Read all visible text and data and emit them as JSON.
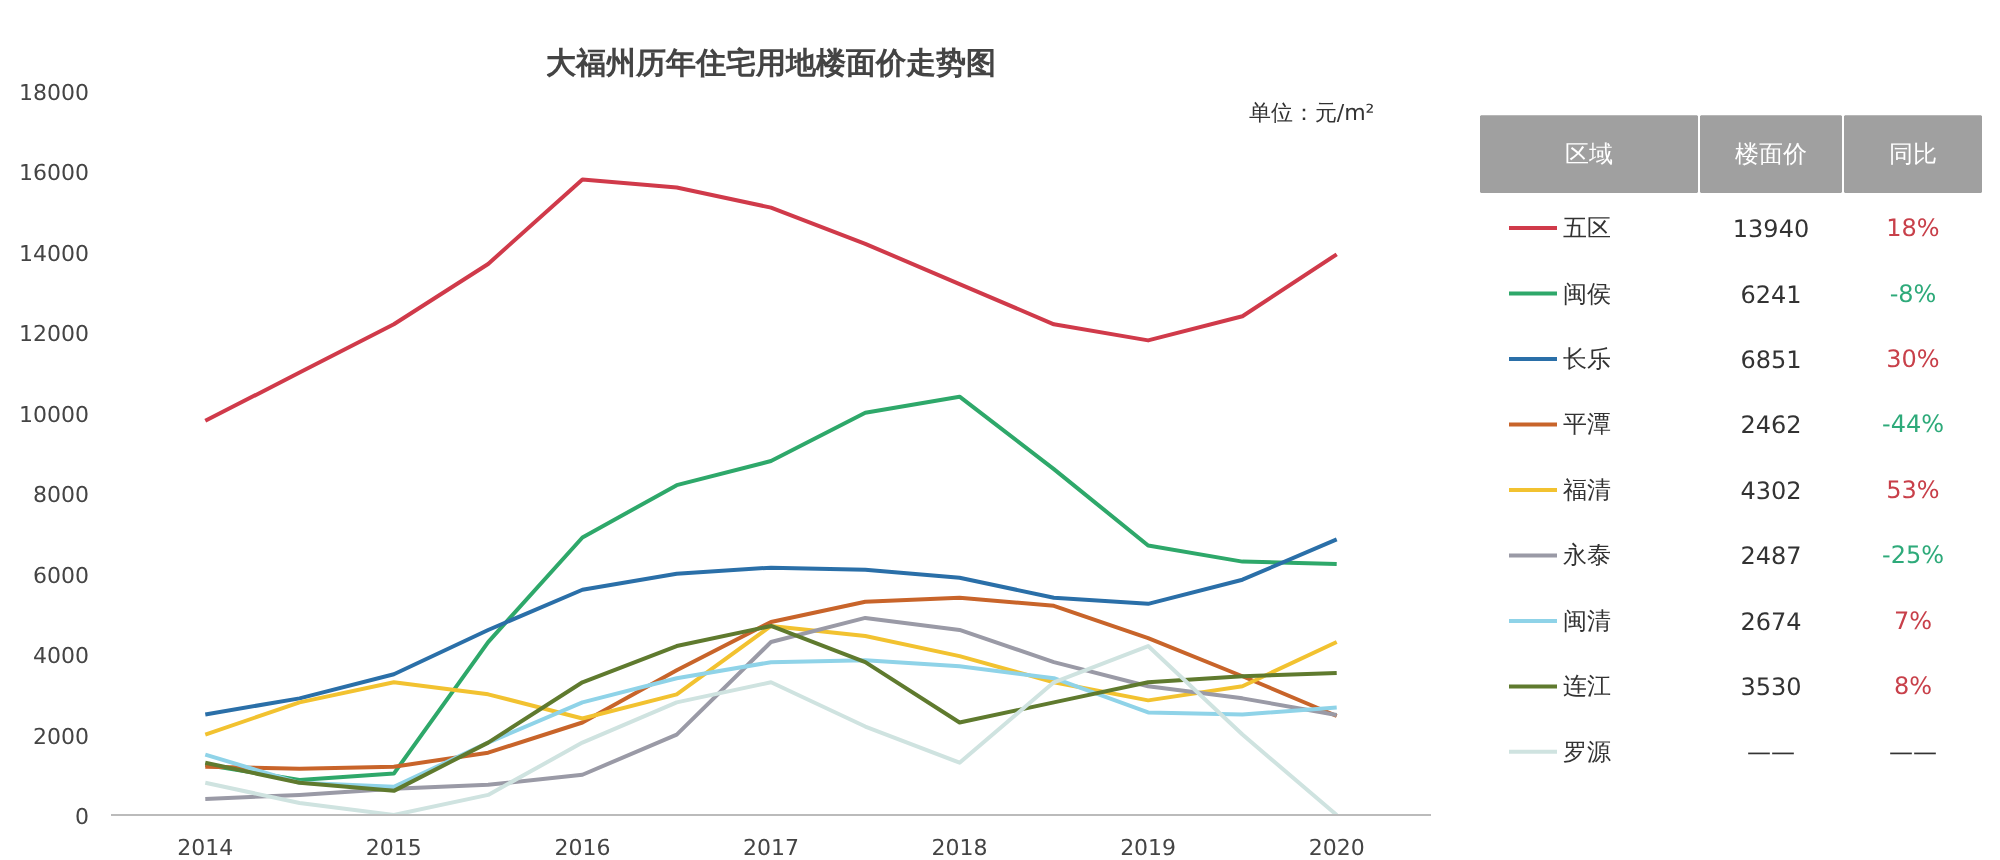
{
  "chart_data": {
    "type": "line",
    "title": "大福州历年住宅用地楼面价走势图",
    "x": [
      2014,
      2014.5,
      2015,
      2015.5,
      2016,
      2016.5,
      2017,
      2017.5,
      2018,
      2018.5,
      2019,
      2019.5,
      2020
    ],
    "xlim": [
      2013.5,
      2020.5
    ],
    "xticks": [
      2014,
      2015,
      2016,
      2017,
      2018,
      2019,
      2020
    ],
    "ylim": [
      0,
      18000
    ],
    "yticks": [
      0,
      2000,
      4000,
      6000,
      8000,
      10000,
      12000,
      14000,
      16000,
      18000
    ],
    "grid": false,
    "legend": "right",
    "marker": "none",
    "line_style": "solid",
    "series": [
      {
        "name": "五区",
        "color": "#d03a4a",
        "values": [
          9800,
          11000,
          12200,
          13700,
          15800,
          15600,
          15100,
          14200,
          13200,
          12200,
          11800,
          12400,
          13940
        ]
      },
      {
        "name": "闽侯",
        "color": "#2ea86a",
        "values": [
          1250,
          870,
          1030,
          4300,
          6900,
          8200,
          8800,
          10000,
          10400,
          8600,
          6700,
          6300,
          6241
        ]
      },
      {
        "name": "长乐",
        "color": "#2a6fa8",
        "values": [
          2500,
          2900,
          3500,
          4600,
          5600,
          6000,
          6150,
          6100,
          5900,
          5400,
          5250,
          5850,
          6851
        ]
      },
      {
        "name": "平潭",
        "color": "#c8642a",
        "values": [
          1200,
          1150,
          1200,
          1550,
          2300,
          3600,
          4800,
          5300,
          5400,
          5200,
          4400,
          3450,
          2462
        ]
      },
      {
        "name": "福清",
        "color": "#f2c230",
        "values": [
          2000,
          2800,
          3300,
          3000,
          2400,
          3000,
          4700,
          4450,
          3950,
          3300,
          2850,
          3200,
          4302
        ]
      },
      {
        "name": "永泰",
        "color": "#9a9aa6",
        "values": [
          400,
          500,
          650,
          750,
          1000,
          2000,
          4300,
          4900,
          4600,
          3800,
          3200,
          2900,
          2487
        ]
      },
      {
        "name": "闽清",
        "color": "#8fd3e8",
        "values": [
          1500,
          800,
          700,
          1800,
          2800,
          3400,
          3800,
          3850,
          3700,
          3400,
          2550,
          2500,
          2674
        ]
      },
      {
        "name": "连江",
        "color": "#5f7a2e",
        "values": [
          1300,
          800,
          600,
          1800,
          3300,
          4200,
          4700,
          3800,
          2300,
          2800,
          3300,
          3450,
          3530
        ]
      },
      {
        "name": "罗源",
        "color": "#cfe3e0",
        "values": [
          800,
          300,
          0,
          500,
          1800,
          2800,
          3300,
          2200,
          1300,
          3300,
          4200,
          2000,
          0
        ]
      }
    ],
    "annotations": [
      "单位：元/m²",
      "区域",
      "楼面价",
      "同比",
      "13940",
      "18%",
      "6241",
      "-8%",
      "6851",
      "30%",
      "2462",
      "-44%",
      "4302",
      "53%",
      "2487",
      "-25%",
      "2674",
      "7%",
      "3530",
      "8%",
      "——",
      "——"
    ]
  }
}
